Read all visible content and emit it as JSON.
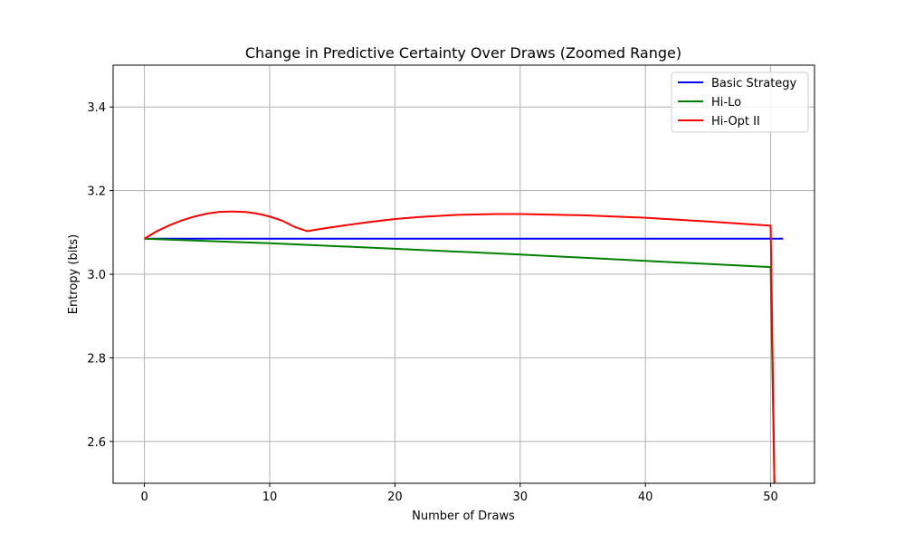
{
  "chart_data": {
    "type": "line",
    "title": "Change in Predictive Certainty Over Draws (Zoomed Range)",
    "xlabel": "Number of Draws",
    "ylabel": "Entropy (bits)",
    "xlim": [
      -2.5,
      53.5
    ],
    "ylim": [
      2.5,
      3.5
    ],
    "xticks": [
      0,
      10,
      20,
      30,
      40,
      50
    ],
    "yticks": [
      2.6,
      2.8,
      3.0,
      3.2,
      3.4
    ],
    "xtick_labels": [
      "0",
      "10",
      "20",
      "30",
      "40",
      "50"
    ],
    "ytick_labels": [
      "2.6",
      "2.8",
      "3.0",
      "3.2",
      "3.4"
    ],
    "grid": true,
    "legend_position": "top-right",
    "series": [
      {
        "name": "Basic Strategy",
        "color": "#0000ff",
        "x": [
          0,
          51
        ],
        "y": [
          3.085,
          3.085
        ]
      },
      {
        "name": "Hi-Lo",
        "color": "#008000",
        "x": [
          0,
          10,
          20,
          30,
          40,
          50,
          50.3
        ],
        "y": [
          3.085,
          3.074,
          3.061,
          3.047,
          3.032,
          3.017,
          2.5
        ]
      },
      {
        "name": "Hi-Opt II",
        "color": "#ff0000",
        "x": [
          0,
          1,
          2,
          3,
          4,
          5,
          6,
          7,
          8,
          9,
          10,
          11,
          12,
          13,
          14,
          16,
          18,
          20,
          22,
          25,
          28,
          30,
          35,
          40,
          45,
          50,
          50.3
        ],
        "y": [
          3.085,
          3.103,
          3.117,
          3.129,
          3.138,
          3.145,
          3.149,
          3.15,
          3.149,
          3.145,
          3.138,
          3.128,
          3.113,
          3.103,
          3.108,
          3.117,
          3.125,
          3.132,
          3.137,
          3.142,
          3.144,
          3.144,
          3.141,
          3.135,
          3.126,
          3.116,
          2.5
        ]
      }
    ]
  }
}
